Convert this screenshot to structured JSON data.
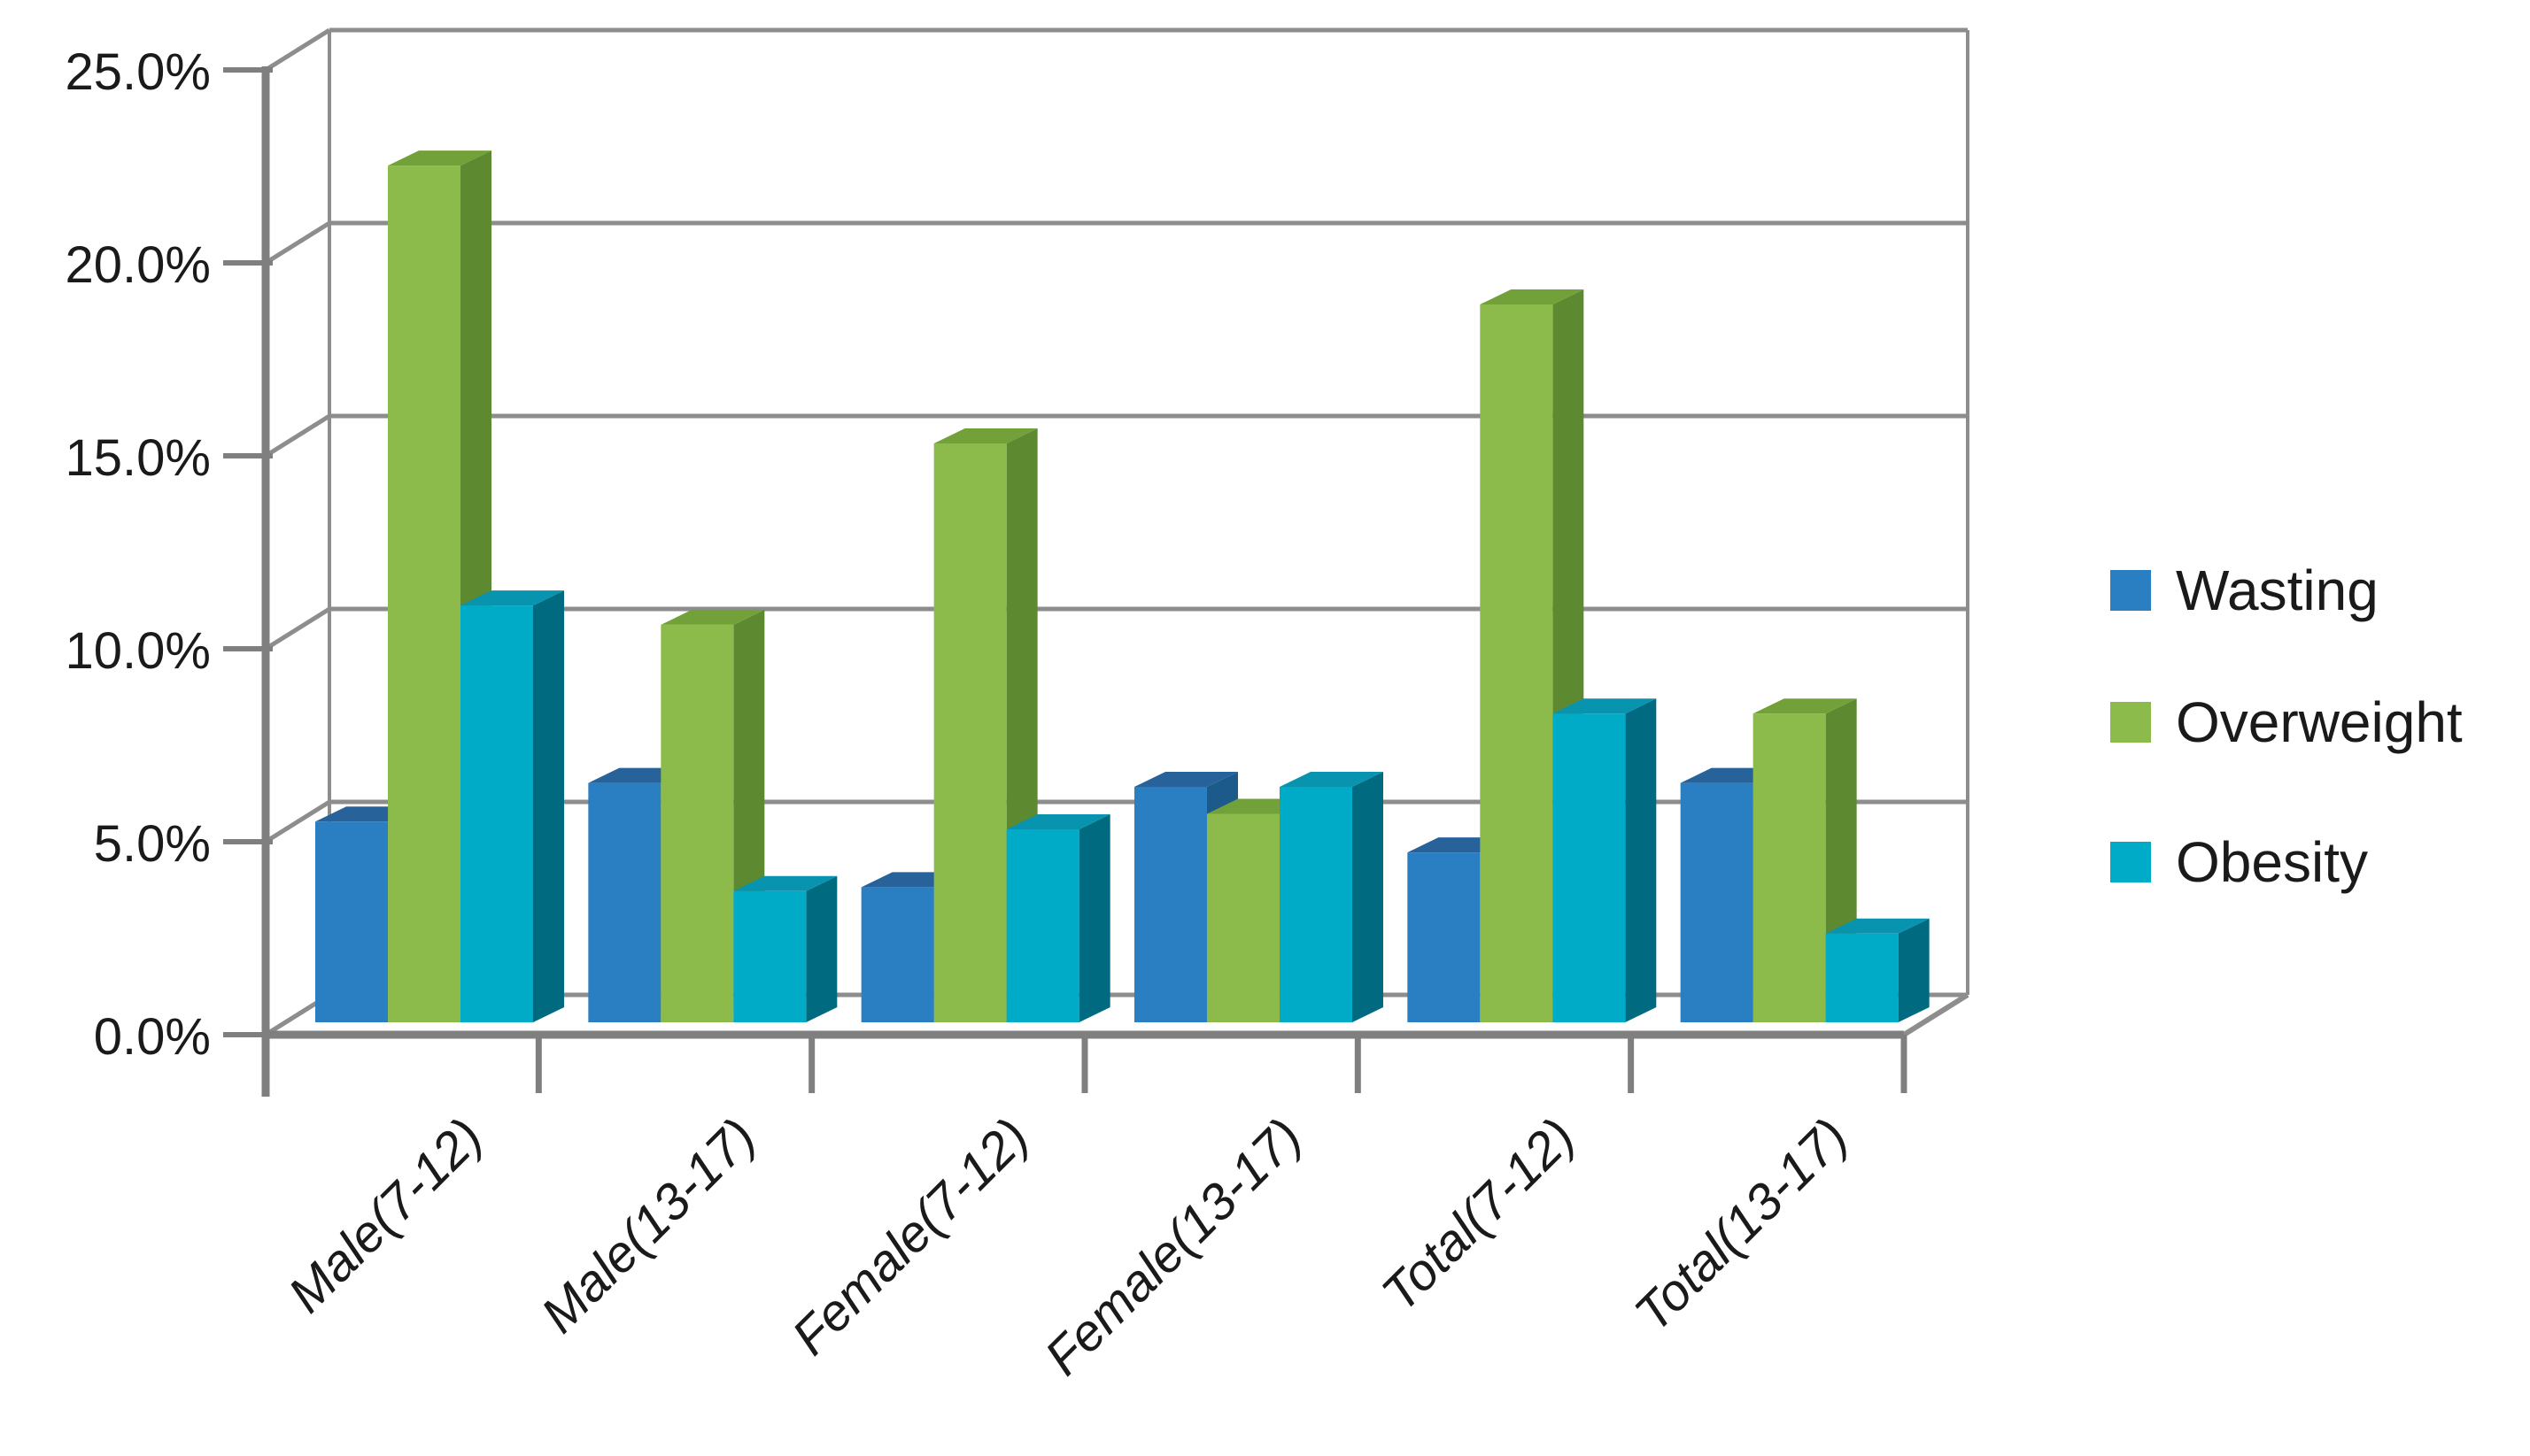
{
  "chart_data": {
    "type": "bar",
    "style": "3d-clustered-column",
    "title": "",
    "xlabel": "",
    "ylabel": "",
    "categories": [
      "Male(7-12)",
      "Male(13-17)",
      "Female(7-12)",
      "Female(13-17)",
      "Total(7-12)",
      "Total(13-17)"
    ],
    "series": [
      {
        "name": "Wasting",
        "values": [
          5.2,
          6.2,
          3.5,
          6.1,
          4.4,
          6.2
        ],
        "color": "#2A7EC2",
        "color_top": "#27629B",
        "color_side": "#1B5A8A"
      },
      {
        "name": "Overweight",
        "values": [
          22.2,
          10.3,
          15.0,
          5.4,
          18.6,
          8.0
        ],
        "color": "#8CBB4B",
        "color_top": "#72A13A",
        "color_side": "#5D8A31"
      },
      {
        "name": "Obesity",
        "values": [
          10.8,
          3.4,
          5.0,
          6.1,
          8.0,
          2.3
        ],
        "color": "#00ABC8",
        "color_top": "#0894AF",
        "color_side": "#006A80"
      }
    ],
    "ylim": [
      0,
      25
    ],
    "ytick_step": 5,
    "ytick_labels": [
      "0.0%",
      "5.0%",
      "10.0%",
      "15.0%",
      "20.0%",
      "25.0%"
    ],
    "grid": true,
    "legend_position": "right"
  },
  "legend": {
    "items": [
      {
        "label": "Wasting"
      },
      {
        "label": "Overweight"
      },
      {
        "label": "Obesity"
      }
    ]
  },
  "colors": {
    "gridline": "#8D8D8D",
    "axis": "#7F7F7F",
    "text": "#1A1A1A",
    "background": "#FFFFFF"
  }
}
